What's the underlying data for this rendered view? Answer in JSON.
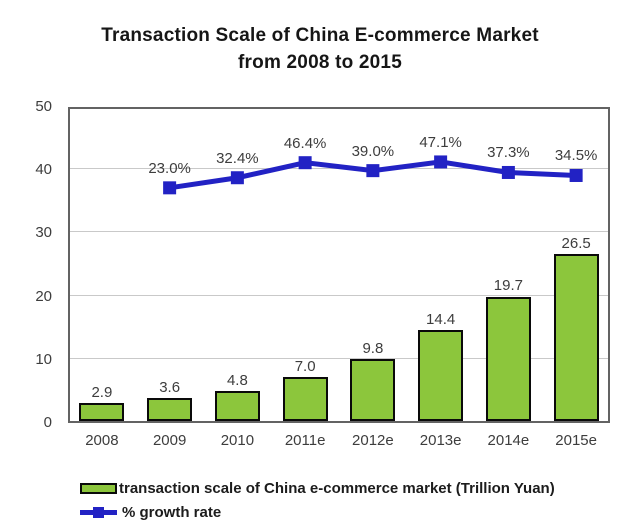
{
  "header": {
    "line1": "Transaction Scale of China E-commerce Market",
    "line2": "from 2008 to 2015"
  },
  "colors": {
    "bar_fill": "#8cc63c",
    "bar_border": "#0a0a0a",
    "line": "#2222c4",
    "grid": "#c9c9c9",
    "axis_border": "#636363",
    "text": "#3d3d3d"
  },
  "legend": {
    "items": [
      {
        "swatch": "bar",
        "label": "transaction scale of China e-commerce market (Trillion Yuan)"
      },
      {
        "swatch": "line",
        "label": "% growth rate"
      }
    ]
  },
  "chart_data": {
    "type": "bar",
    "title": "Transaction Scale of China E-commerce Market from 2008 to 2015",
    "categories": [
      "2008",
      "2009",
      "2010",
      "2011e",
      "2012e",
      "2013e",
      "2014e",
      "2015e"
    ],
    "series": [
      {
        "name": "transaction scale of China e-commerce market (Trillion Yuan)",
        "type": "bar",
        "values": [
          2.9,
          3.6,
          4.8,
          7.0,
          9.8,
          14.4,
          19.7,
          26.5
        ],
        "labels": [
          "2.9",
          "3.6",
          "4.8",
          "7.0",
          "9.8",
          "14.4",
          "19.7",
          "26.5"
        ]
      },
      {
        "name": "% growth rate",
        "type": "line",
        "values": [
          null,
          23.0,
          32.4,
          46.4,
          39.0,
          47.1,
          37.3,
          34.5
        ],
        "labels": [
          "",
          "23.0%",
          "32.4%",
          "46.4%",
          "39.0%",
          "47.1%",
          "37.3%",
          "34.5%"
        ]
      }
    ],
    "y_axis": {
      "ticks": [
        0,
        10,
        20,
        30,
        40,
        50
      ],
      "range": [
        0,
        50
      ]
    },
    "xlabel": "",
    "ylabel": "",
    "grid": true,
    "legend_position": "bottom"
  }
}
